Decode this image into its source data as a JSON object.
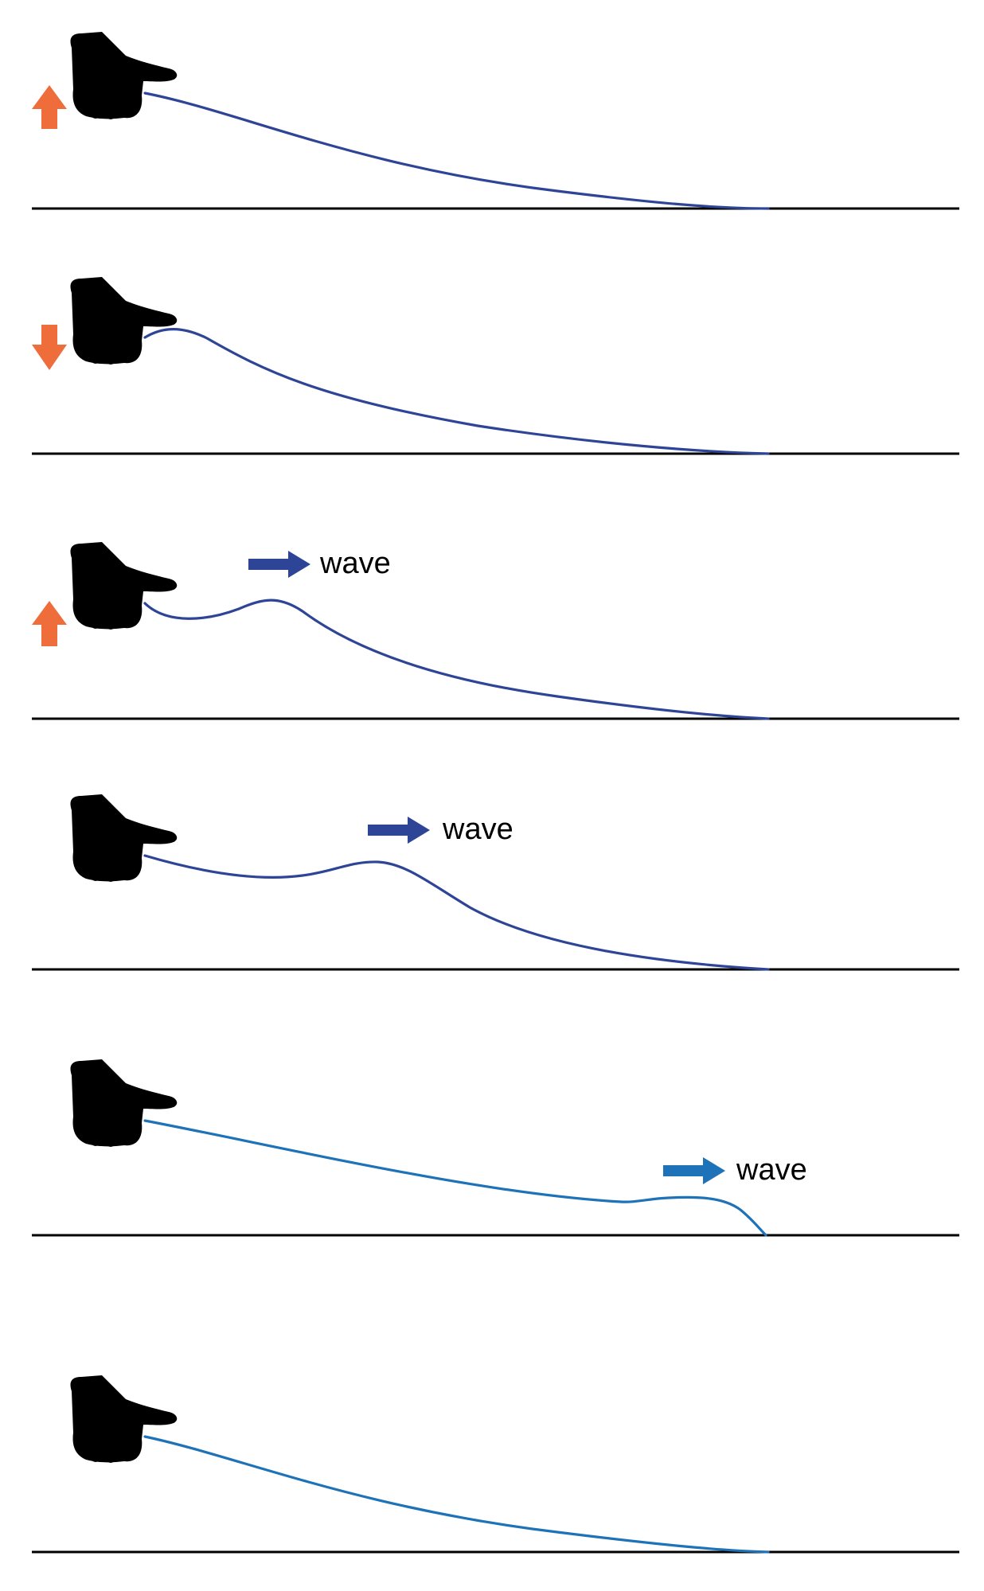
{
  "colors": {
    "background": "#ffffff",
    "ground_line": "#000000",
    "rope_dark_blue": "#2e4597",
    "rope_light_blue": "#1d72b8",
    "motion_arrow_orange": "#ee6d3b",
    "wave_arrow_dark_blue": "#2e4597",
    "wave_arrow_light_blue": "#1d72b8"
  },
  "icons": {
    "hand": "hand-icon",
    "up_arrow": "up-arrow-icon",
    "down_arrow": "down-arrow-icon",
    "wave_arrow": "right-arrow-icon"
  },
  "panels": [
    {
      "hand_motion": "up",
      "wave_label": ""
    },
    {
      "hand_motion": "down",
      "wave_label": ""
    },
    {
      "hand_motion": "up",
      "wave_label": "wave"
    },
    {
      "hand_motion": "none",
      "wave_label": "wave"
    },
    {
      "hand_motion": "none",
      "wave_label": "wave"
    },
    {
      "hand_motion": "none",
      "wave_label": ""
    }
  ]
}
